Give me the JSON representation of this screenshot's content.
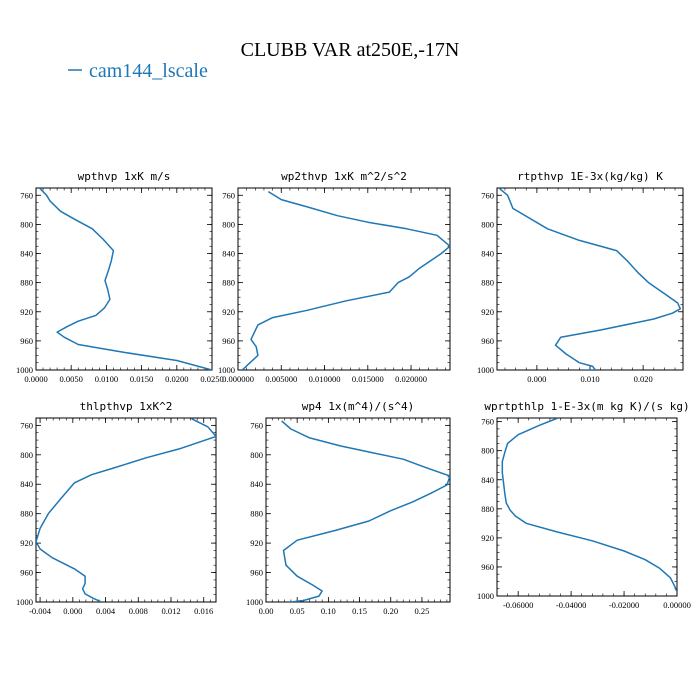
{
  "figure": {
    "title": "CLUBB VAR at250E,-17N",
    "legend": [
      "cam144_lscale"
    ],
    "line_color": "#1f77b4"
  },
  "chart_data": [
    {
      "type": "line",
      "title": "wpthvp  1xK m/s",
      "xlim": [
        0.0,
        0.025
      ],
      "ylim": [
        1000,
        750
      ],
      "xticks": [
        0,
        0.005,
        0.01,
        0.015,
        0.02,
        0.025
      ],
      "xticklabels": [
        "0.0000",
        "0.0050",
        "0.0100",
        "0.0150",
        "0.0200",
        "0.0250"
      ],
      "yticks": [
        760,
        800,
        840,
        880,
        920,
        960,
        1000
      ],
      "series": [
        {
          "x": [
            0.0005,
            0.0015,
            0.002,
            0.0035,
            0.0055,
            0.008,
            0.0095,
            0.011,
            0.0107,
            0.0103,
            0.0098,
            0.0102,
            0.0105,
            0.0097,
            0.0085,
            0.006,
            0.0045,
            0.003,
            0.004,
            0.006,
            0.012,
            0.02,
            0.025
          ],
          "y": [
            750,
            760,
            768,
            782,
            793,
            806,
            820,
            836,
            850,
            863,
            877,
            890,
            903,
            915,
            925,
            933,
            940,
            948,
            955,
            965,
            975,
            987,
            1000
          ]
        }
      ]
    },
    {
      "type": "line",
      "title": "wp2thvp  1xK m^2/s^2",
      "xlim": [
        0.0,
        0.0245
      ],
      "ylim": [
        1000,
        750
      ],
      "xticks": [
        0,
        0.005,
        0.01,
        0.015,
        0.02
      ],
      "xticklabels": [
        "0.000000",
        "0.005000",
        "0.010000",
        "0.015000",
        "0.020000"
      ],
      "yticks": [
        760,
        800,
        840,
        880,
        920,
        960,
        1000
      ],
      "series": [
        {
          "x": [
            0.0035,
            0.005,
            0.008,
            0.0115,
            0.015,
            0.0195,
            0.023,
            0.0245,
            0.0235,
            0.022,
            0.021,
            0.0198,
            0.0185,
            0.0175,
            0.0125,
            0.008,
            0.004,
            0.0023,
            0.0015,
            0.0021,
            0.0023,
            0.0012,
            0.0005
          ],
          "y": [
            755,
            766,
            776,
            788,
            797,
            806,
            815,
            830,
            840,
            852,
            860,
            872,
            880,
            893,
            905,
            918,
            928,
            938,
            958,
            968,
            980,
            992,
            1000
          ]
        }
      ]
    },
    {
      "type": "line",
      "title": "rtpthvp  1E-3x(kg/kg) K",
      "xlim": [
        -0.0075,
        0.0275
      ],
      "ylim": [
        1000,
        750
      ],
      "xticks": [
        0,
        0.01,
        0.02
      ],
      "xticklabels": [
        "0.000",
        "0.010",
        "0.020"
      ],
      "yticks": [
        760,
        800,
        840,
        880,
        920,
        960,
        1000
      ],
      "series": [
        {
          "x": [
            -0.007,
            -0.0055,
            -0.0045,
            0.002,
            0.008,
            0.015,
            0.017,
            0.019,
            0.021,
            0.024,
            0.0265,
            0.027,
            0.0255,
            0.022,
            0.012,
            0.0045,
            0.0035,
            0.0055,
            0.008,
            0.0105,
            0.011,
            0.0085
          ],
          "y": [
            751,
            760,
            778,
            806,
            822,
            836,
            850,
            866,
            880,
            895,
            908,
            916,
            922,
            930,
            945,
            955,
            966,
            978,
            990,
            995,
            1000,
            1000
          ]
        }
      ]
    },
    {
      "type": "line",
      "title": "thlpthvp  1xK^2",
      "xlim": [
        -0.0045,
        0.0175
      ],
      "ylim": [
        1000,
        750
      ],
      "xticks": [
        -0.004,
        0.0,
        0.004,
        0.008,
        0.012,
        0.016
      ],
      "xticklabels": [
        "-0.004",
        "0.000",
        "0.004",
        "0.008",
        "0.012",
        "0.016"
      ],
      "yticks": [
        760,
        800,
        840,
        880,
        920,
        960,
        1000
      ],
      "series": [
        {
          "x": [
            0.0145,
            0.0165,
            0.0175,
            0.013,
            0.009,
            0.005,
            0.0023,
            0.0002,
            -0.0015,
            -0.003,
            -0.004,
            -0.0045,
            -0.004,
            -0.0025,
            0.0002,
            0.0015,
            0.0015,
            0.0012,
            0.0015,
            0.0025,
            0.0035
          ],
          "y": [
            751,
            762,
            775,
            792,
            804,
            818,
            827,
            838,
            860,
            880,
            900,
            918,
            928,
            940,
            955,
            965,
            975,
            982,
            989,
            995,
            1000
          ]
        }
      ]
    },
    {
      "type": "line",
      "title": "wp4  1x(m^4)/(s^4)",
      "xlim": [
        0.0,
        0.295
      ],
      "ylim": [
        1000,
        750
      ],
      "xticks": [
        0,
        0.05,
        0.1,
        0.15,
        0.2,
        0.25
      ],
      "xticklabels": [
        "0.00",
        "0.05",
        "0.10",
        "0.15",
        "0.20",
        "0.25"
      ],
      "yticks": [
        760,
        800,
        840,
        880,
        920,
        960,
        1000
      ],
      "series": [
        {
          "x": [
            0.025,
            0.04,
            0.07,
            0.12,
            0.17,
            0.22,
            0.255,
            0.295,
            0.29,
            0.265,
            0.235,
            0.2,
            0.165,
            0.11,
            0.05,
            0.028,
            0.032,
            0.05,
            0.075,
            0.09,
            0.085,
            0.06,
            0.04
          ],
          "y": [
            754,
            765,
            777,
            788,
            797,
            806,
            817,
            829,
            841,
            852,
            864,
            876,
            890,
            903,
            916,
            930,
            950,
            965,
            977,
            985,
            992,
            998,
            1000
          ]
        }
      ]
    },
    {
      "type": "line",
      "title": "wprtpthlp  1-E-3x(m kg K)/(s kg)",
      "xlim": [
        -0.068,
        0.0
      ],
      "ylim": [
        1000,
        755
      ],
      "xticks": [
        -0.06,
        -0.04,
        -0.02,
        0.0
      ],
      "xticklabels": [
        "-0.06000",
        "-0.04000",
        "-0.02000",
        "0.00000"
      ],
      "yticks": [
        760,
        800,
        840,
        880,
        920,
        960,
        1000
      ],
      "series": [
        {
          "x": [
            -0.045,
            -0.052,
            -0.06,
            -0.064,
            -0.065,
            -0.066,
            -0.066,
            -0.0655,
            -0.065,
            -0.0645,
            -0.063,
            -0.061,
            -0.057,
            -0.045,
            -0.032,
            -0.02,
            -0.012,
            -0.0065,
            -0.0025,
            -0.0008,
            -0.0002
          ],
          "y": [
            755,
            765,
            778,
            790,
            802,
            815,
            830,
            845,
            860,
            872,
            882,
            890,
            900,
            912,
            924,
            938,
            950,
            962,
            975,
            987,
            993
          ]
        }
      ]
    }
  ]
}
